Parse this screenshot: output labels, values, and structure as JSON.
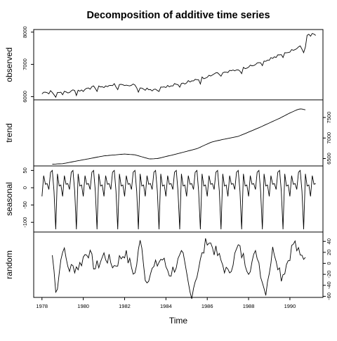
{
  "chart_data": {
    "type": "line",
    "title": "Decomposition of additive time series",
    "xlabel": "Time",
    "xlim": [
      1977.6,
      1991.6
    ],
    "x_ticks": [
      1978,
      1980,
      1982,
      1984,
      1986,
      1988,
      1990
    ],
    "x_tick_labels": [
      "1978",
      "1980",
      "1982",
      "1984",
      "1986",
      "1988",
      "1990"
    ],
    "frequency": 12,
    "start": 1978.0,
    "panels": [
      {
        "name": "observed",
        "ylabel": "observed",
        "ylim": [
          5900,
          8080
        ],
        "y_ticks": [
          6000,
          7000,
          8000
        ],
        "y_tick_labels": [
          "6000",
          "7000",
          "8000"
        ]
      },
      {
        "name": "trend",
        "ylabel": "trend",
        "ylim": [
          6320,
          7930
        ],
        "y_ticks": [
          6500,
          7000,
          7500
        ],
        "y_tick_labels": [
          "6500",
          "7000",
          "7500"
        ],
        "knots_x": [
          1978.5,
          1979.0,
          1980.0,
          1981.0,
          1982.0,
          1982.5,
          1983.2,
          1983.6,
          1984.5,
          1985.5,
          1986.2,
          1986.7,
          1987.5,
          1988.5,
          1989.5,
          1990.0,
          1990.4,
          1990.55,
          1990.8
        ],
        "knots_y": [
          6363,
          6375,
          6470,
          6565,
          6610,
          6590,
          6490,
          6500,
          6610,
          6740,
          6900,
          6960,
          7040,
          7250,
          7480,
          7610,
          7700,
          7710,
          7680
        ]
      },
      {
        "name": "seasonal",
        "ylabel": "seasonal",
        "ylim": [
          -128,
          63
        ],
        "y_ticks": [
          -100,
          -50,
          0,
          50
        ],
        "y_tick_labels": [
          "-100",
          "-50",
          "0",
          "50"
        ],
        "pattern": [
          -25,
          35,
          10,
          12,
          -5,
          45,
          50,
          -10,
          -120,
          40,
          5,
          8
        ]
      },
      {
        "name": "random",
        "ylabel": "random",
        "ylim": [
          -62,
          57
        ],
        "y_ticks": [
          -60,
          -40,
          -20,
          0,
          20,
          40
        ],
        "y_tick_labels": [
          "-60",
          "-40",
          "-20",
          "0",
          "20",
          "40"
        ],
        "knots_x": [
          1978.5,
          1978.7,
          1979.0,
          1979.3,
          1979.8,
          1980.2,
          1980.6,
          1981.0,
          1981.5,
          1982.0,
          1982.5,
          1982.8,
          1983.0,
          1983.3,
          1983.8,
          1984.2,
          1984.8,
          1985.2,
          1985.6,
          1986.0,
          1986.5,
          1987.0,
          1987.5,
          1988.0,
          1988.4,
          1988.8,
          1989.2,
          1989.6,
          1989.9,
          1990.2,
          1990.5,
          1990.8
        ],
        "knots_y": [
          15,
          -55,
          30,
          -10,
          -5,
          25,
          -10,
          15,
          -5,
          20,
          -20,
          50,
          -30,
          -15,
          10,
          -20,
          15,
          -60,
          -5,
          45,
          15,
          -20,
          30,
          -10,
          20,
          -55,
          30,
          -25,
          5,
          40,
          10,
          15
        ],
        "amplitude": 12
      }
    ]
  }
}
